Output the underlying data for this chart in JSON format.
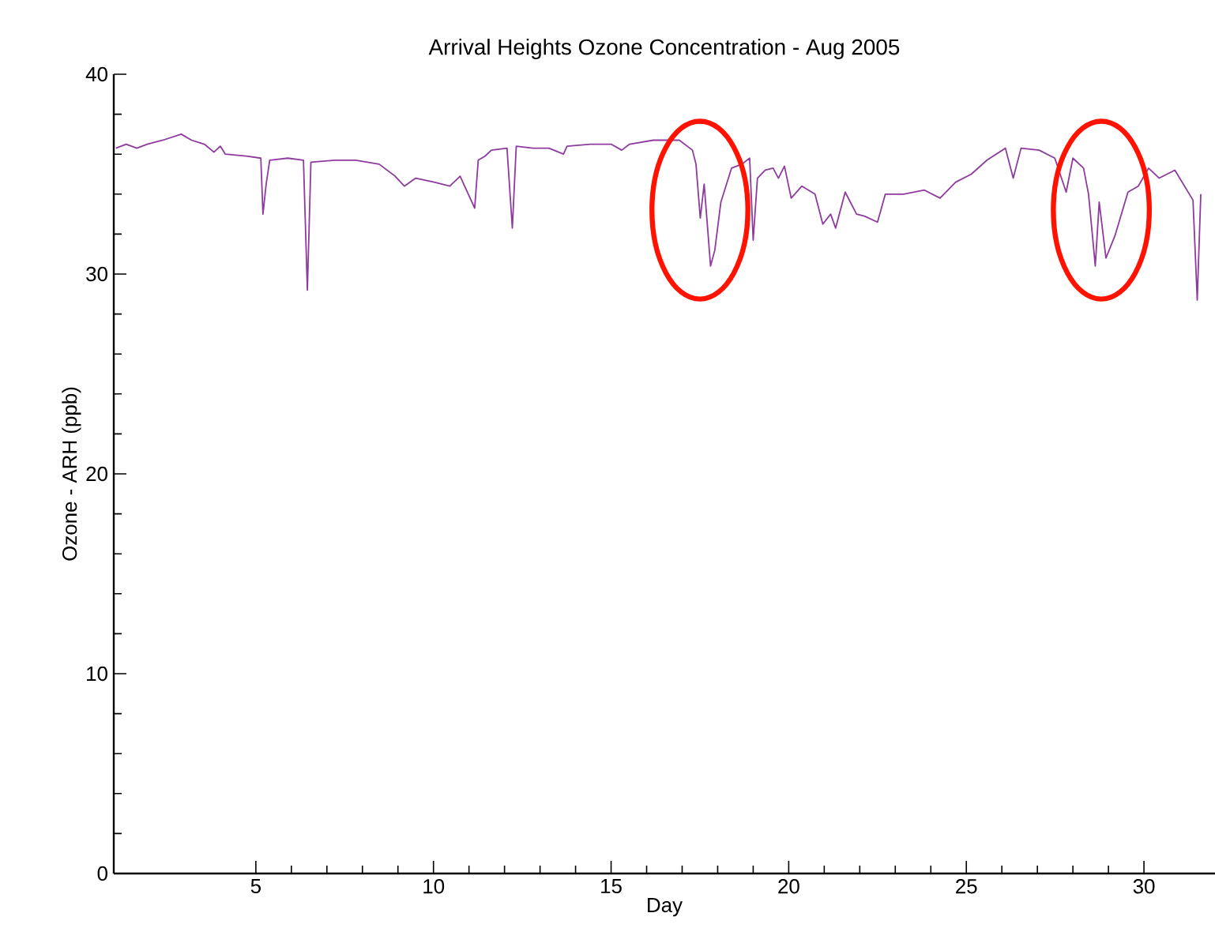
{
  "chart_data": {
    "type": "line",
    "title": "Arrival Heights Ozone Concentration - Aug 2005",
    "xlabel": "Day",
    "ylabel": "Ozone - ARH (ppb)",
    "xlim": [
      1,
      32
    ],
    "xticks": [
      5,
      10,
      15,
      20,
      25,
      30
    ],
    "ylim": [
      0,
      40
    ],
    "yticks": [
      0,
      10,
      20,
      30,
      40
    ],
    "marker": "none",
    "line_style": "solid",
    "series": [
      {
        "color": "#8e3a9e",
        "x": [
          1.06,
          1.35,
          1.65,
          1.94,
          2.38,
          2.9,
          3.19,
          3.55,
          3.82,
          4.0,
          4.14,
          4.73,
          5.14,
          5.2,
          5.29,
          5.39,
          5.9,
          6.34,
          6.45,
          6.55,
          7.22,
          7.81,
          8.47,
          8.92,
          9.18,
          9.5,
          10.02,
          10.46,
          10.75,
          11.16,
          11.26,
          11.45,
          11.63,
          12.07,
          12.22,
          12.33,
          12.8,
          13.25,
          13.66,
          13.76,
          14.42,
          15.0,
          15.3,
          15.52,
          16.19,
          16.92,
          17.29,
          17.39,
          17.51,
          17.62,
          17.8,
          17.92,
          18.09,
          18.39,
          18.68,
          18.9,
          19.0,
          19.12,
          19.34,
          19.56,
          19.71,
          19.88,
          20.07,
          20.37,
          20.74,
          20.96,
          21.18,
          21.32,
          21.59,
          21.91,
          22.13,
          22.5,
          22.72,
          23.23,
          23.82,
          24.26,
          24.7,
          25.14,
          25.58,
          26.1,
          26.32,
          26.54,
          27.05,
          27.49,
          27.81,
          28.0,
          28.3,
          28.44,
          28.63,
          28.74,
          28.93,
          29.18,
          29.55,
          29.84,
          30.13,
          30.43,
          30.87,
          31.38,
          31.5,
          31.6
        ],
        "values": [
          36.3,
          36.5,
          36.3,
          36.5,
          36.7,
          37.0,
          36.7,
          36.5,
          36.1,
          36.4,
          36.0,
          35.9,
          35.8,
          33.0,
          34.5,
          35.7,
          35.8,
          35.7,
          29.2,
          35.6,
          35.7,
          35.7,
          35.5,
          34.9,
          34.4,
          34.8,
          34.6,
          34.4,
          34.9,
          33.3,
          35.7,
          35.9,
          36.2,
          36.3,
          32.3,
          36.4,
          36.3,
          36.3,
          36.0,
          36.4,
          36.5,
          36.5,
          36.2,
          36.5,
          36.7,
          36.7,
          36.2,
          35.5,
          32.8,
          34.5,
          30.4,
          31.2,
          33.6,
          35.3,
          35.5,
          35.8,
          31.7,
          34.8,
          35.2,
          35.3,
          34.8,
          35.4,
          33.8,
          34.4,
          34.0,
          32.5,
          33.0,
          32.3,
          34.1,
          33.0,
          32.9,
          32.6,
          34.0,
          34.0,
          34.2,
          33.8,
          34.6,
          35.0,
          35.7,
          36.3,
          34.8,
          36.3,
          36.2,
          35.8,
          34.1,
          35.8,
          35.3,
          34.0,
          30.4,
          33.6,
          30.8,
          31.9,
          34.1,
          34.4,
          35.3,
          34.8,
          35.2,
          33.7,
          28.7,
          34.0
        ]
      }
    ]
  }
}
